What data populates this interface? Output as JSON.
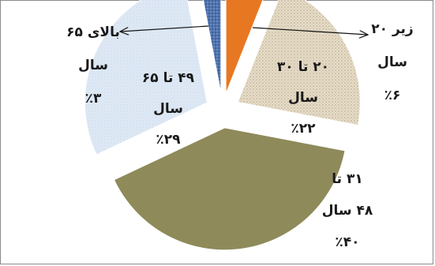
{
  "chart_data": {
    "type": "pie",
    "exploded": true,
    "legend": "none",
    "categories": [
      "زیر ۲۰ سال",
      "۲۰ تا ۳۰ سال",
      "۳۱ تا ۴۸ سال",
      "۴۹ تا ۶۵ سال",
      "بالای ۶۵ سال"
    ],
    "values": [
      6,
      22,
      40,
      29,
      3
    ],
    "value_labels": [
      "٪۶",
      "٪۲۲",
      "٪۴۰",
      "٪۲۹",
      "٪۳"
    ],
    "label_lines": [
      [
        "زیر ۲۰",
        "سال",
        "٪۶"
      ],
      [
        "۲۰ تا ۳۰",
        "سال",
        "٪۲۲"
      ],
      [
        "۳۱ تا",
        "۴۸ سال",
        "٪۴۰"
      ],
      [
        "۴۹ تا ۶۵",
        "سال",
        "٪۲۹"
      ],
      [
        "بالای ۶۵",
        "سال",
        "٪۳"
      ]
    ],
    "slice_colors": [
      "#E87722",
      "#E0D6C2",
      "#8E8A5A",
      "#DCE6F2",
      "#4A6FA8"
    ],
    "slice_patterns": [
      "solid",
      "dots",
      "solid",
      "light-dots",
      "blue-dots"
    ],
    "title": ""
  }
}
